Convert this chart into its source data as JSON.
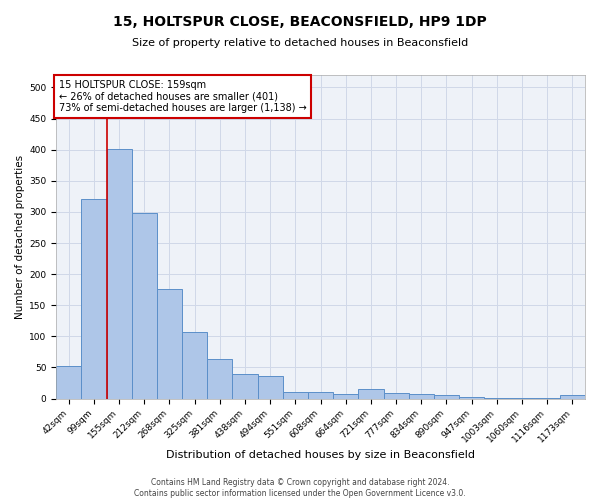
{
  "title": "15, HOLTSPUR CLOSE, BEACONSFIELD, HP9 1DP",
  "subtitle": "Size of property relative to detached houses in Beaconsfield",
  "xlabel": "Distribution of detached houses by size in Beaconsfield",
  "ylabel": "Number of detached properties",
  "footer_line1": "Contains HM Land Registry data © Crown copyright and database right 2024.",
  "footer_line2": "Contains public sector information licensed under the Open Government Licence v3.0.",
  "categories": [
    "42sqm",
    "99sqm",
    "155sqm",
    "212sqm",
    "268sqm",
    "325sqm",
    "381sqm",
    "438sqm",
    "494sqm",
    "551sqm",
    "608sqm",
    "664sqm",
    "721sqm",
    "777sqm",
    "834sqm",
    "890sqm",
    "947sqm",
    "1003sqm",
    "1060sqm",
    "1116sqm",
    "1173sqm"
  ],
  "values": [
    53,
    320,
    401,
    298,
    176,
    107,
    64,
    40,
    36,
    10,
    10,
    8,
    15,
    9,
    7,
    5,
    2,
    1,
    1,
    1,
    5
  ],
  "bar_color": "#aec6e8",
  "bar_edge_color": "#5b8fc9",
  "red_line_x": 1.5,
  "annotation_text": "15 HOLTSPUR CLOSE: 159sqm\n← 26% of detached houses are smaller (401)\n73% of semi-detached houses are larger (1,138) →",
  "annotation_box_color": "#ffffff",
  "annotation_box_edge_color": "#cc0000",
  "ylim": [
    0,
    520
  ],
  "yticks": [
    0,
    50,
    100,
    150,
    200,
    250,
    300,
    350,
    400,
    450,
    500
  ],
  "grid_color": "#d0d8e8",
  "background_color": "#eef2f8",
  "title_fontsize": 10,
  "subtitle_fontsize": 8,
  "xlabel_fontsize": 8,
  "ylabel_fontsize": 7.5,
  "tick_fontsize": 6.5,
  "footer_fontsize": 5.5,
  "annotation_fontsize": 7
}
